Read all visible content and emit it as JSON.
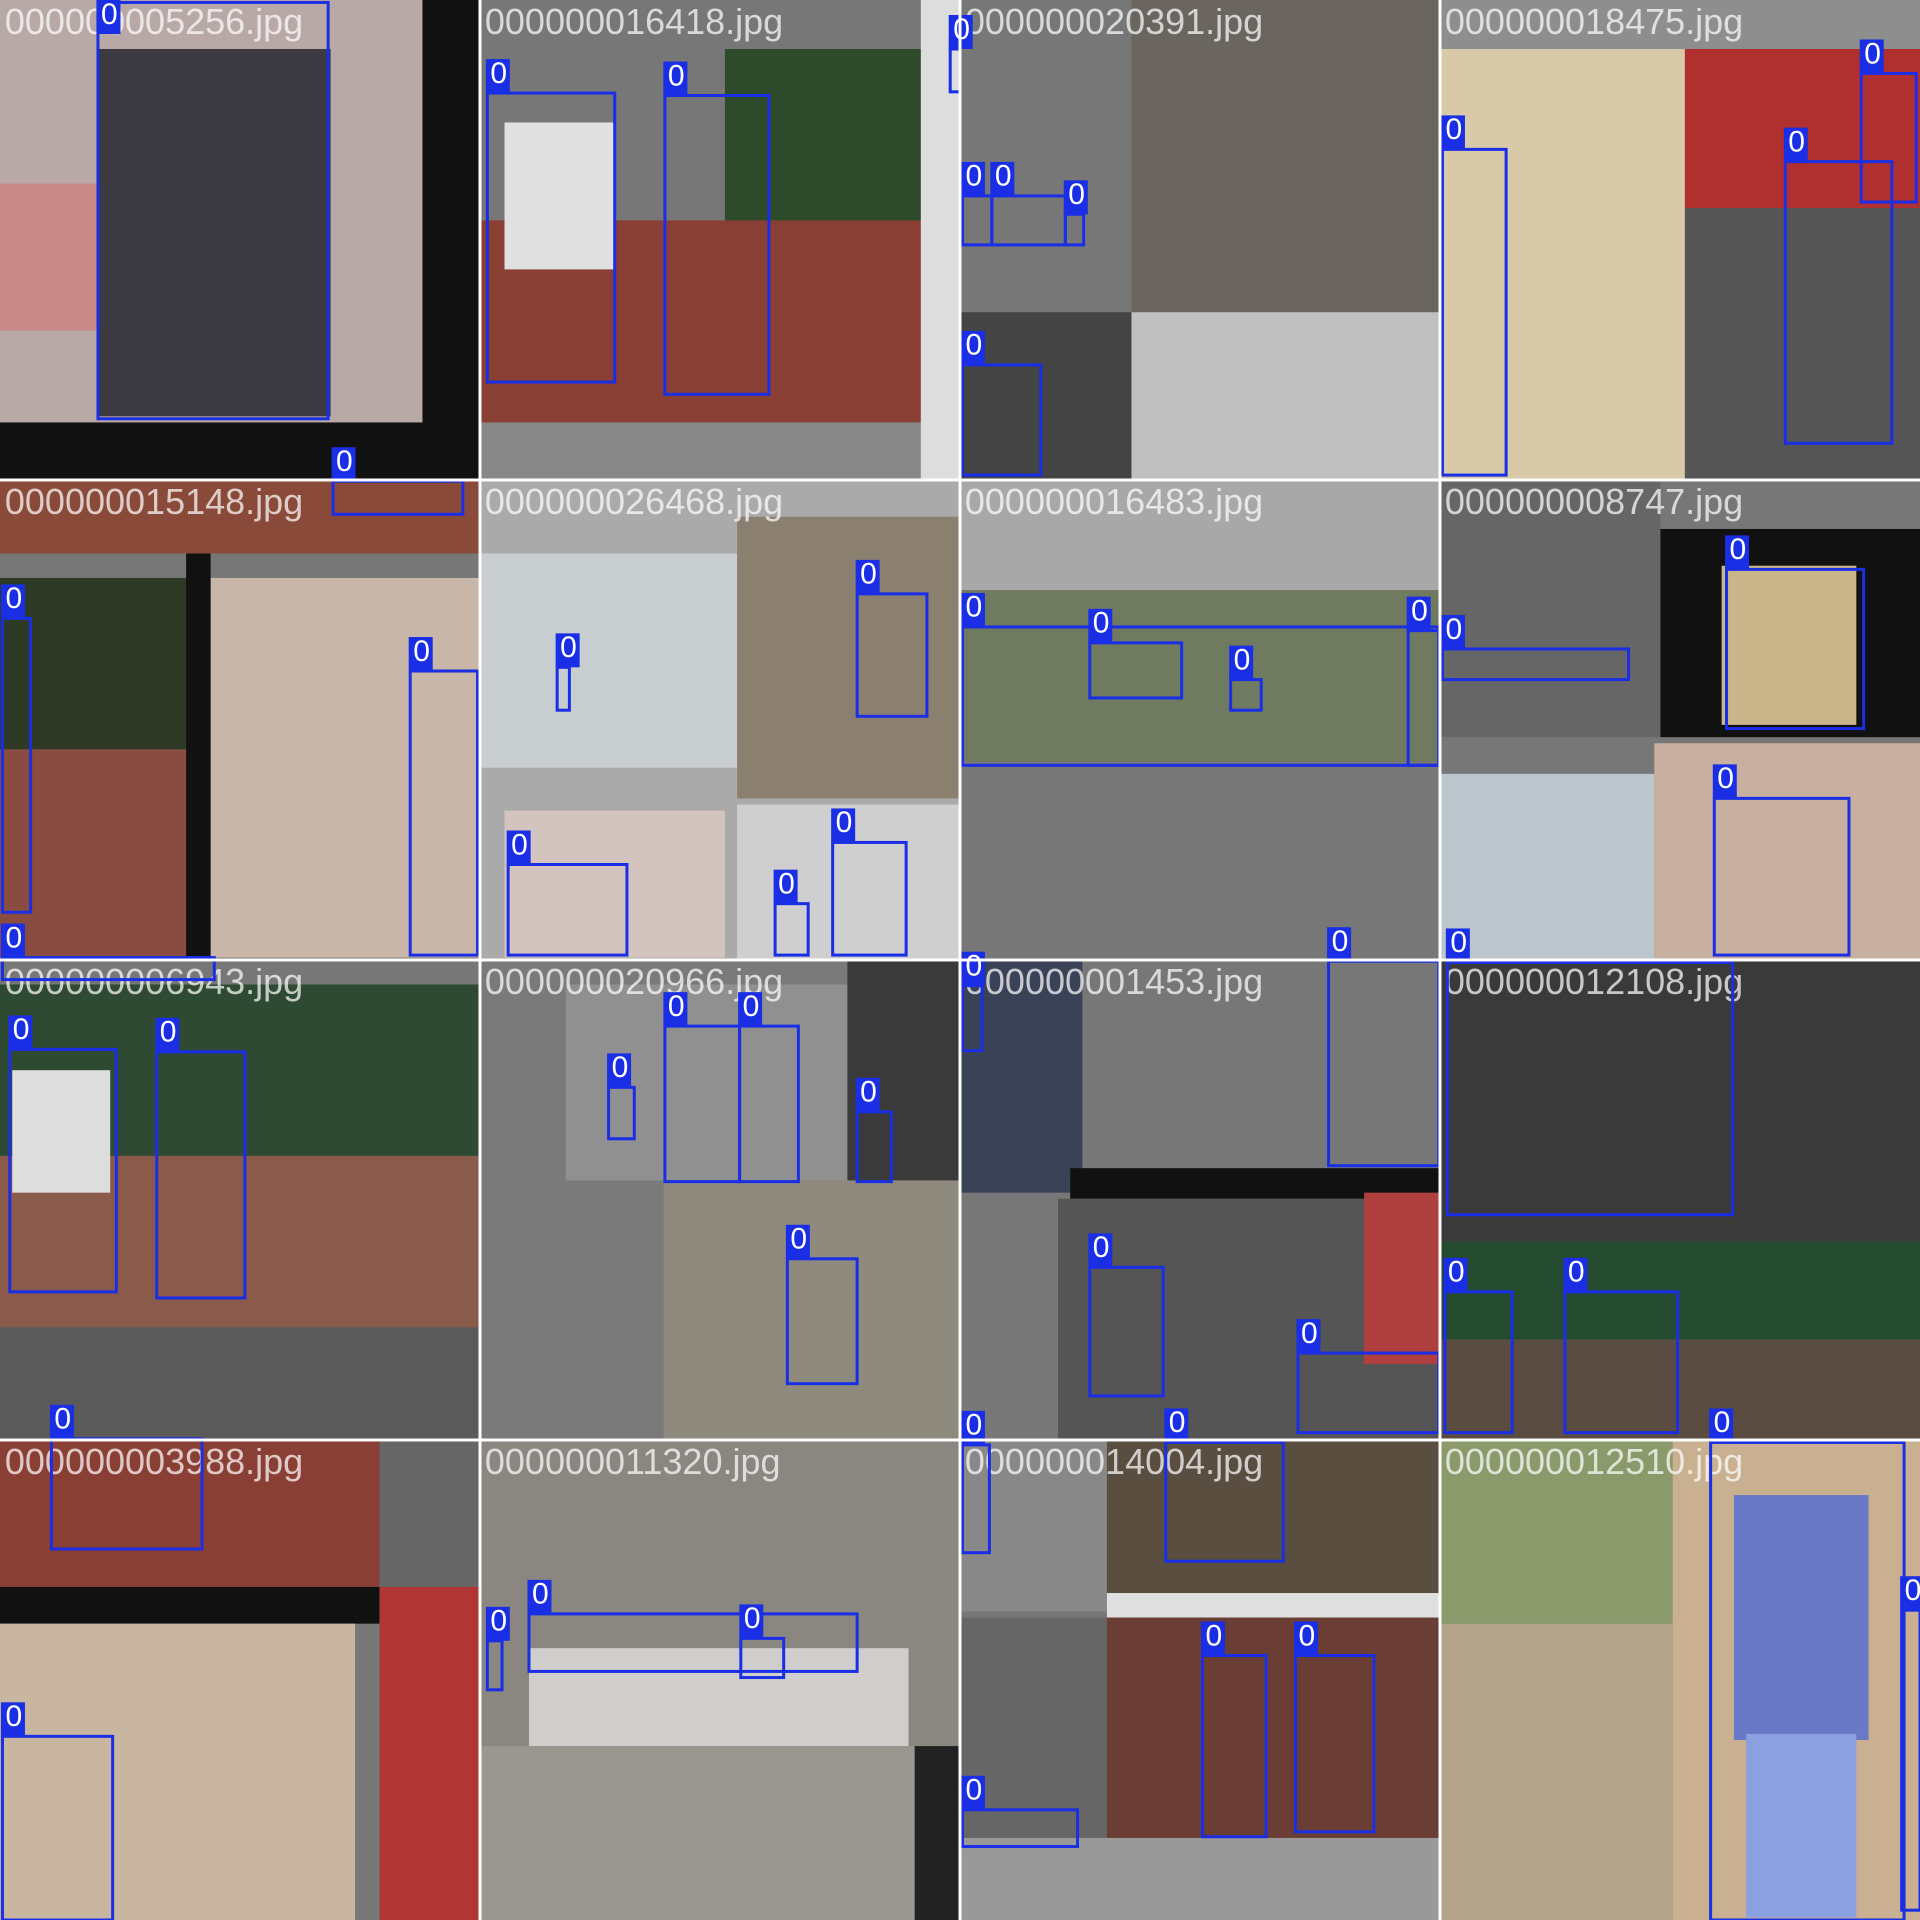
{
  "tiles": [
    {
      "filename": "000000005256.jpg",
      "boxes": [
        {
          "label": "0"
        }
      ]
    },
    {
      "filename": "000000016418.jpg",
      "boxes": [
        {
          "label": "0"
        },
        {
          "label": "0"
        }
      ]
    },
    {
      "filename": "000000020391.jpg",
      "boxes": [
        {
          "label": "0"
        },
        {
          "label": "0"
        },
        {
          "label": "0"
        },
        {
          "label": "0"
        },
        {
          "label": "0"
        }
      ]
    },
    {
      "filename": "000000018475.jpg",
      "boxes": [
        {
          "label": "0"
        },
        {
          "label": "0"
        },
        {
          "label": "0"
        }
      ]
    },
    {
      "filename": "000000015148.jpg",
      "boxes": [
        {
          "label": "0"
        },
        {
          "label": "0"
        },
        {
          "label": "0"
        },
        {
          "label": "0"
        }
      ]
    },
    {
      "filename": "000000026468.jpg",
      "boxes": [
        {
          "label": "0"
        },
        {
          "label": "0"
        },
        {
          "label": "0"
        },
        {
          "label": "0"
        },
        {
          "label": "0"
        }
      ]
    },
    {
      "filename": "000000016483.jpg",
      "boxes": [
        {
          "label": "0"
        },
        {
          "label": "0"
        },
        {
          "label": "0"
        },
        {
          "label": "0"
        }
      ]
    },
    {
      "filename": "000000008747.jpg",
      "boxes": [
        {
          "label": "0"
        },
        {
          "label": "0"
        },
        {
          "label": "0"
        }
      ]
    },
    {
      "filename": "000000006943.jpg",
      "boxes": [
        {
          "label": "0"
        },
        {
          "label": "0"
        }
      ]
    },
    {
      "filename": "000000020966.jpg",
      "boxes": [
        {
          "label": "0"
        },
        {
          "label": "0"
        },
        {
          "label": "0"
        },
        {
          "label": "0"
        },
        {
          "label": "0"
        }
      ]
    },
    {
      "filename": "000000001453.jpg",
      "boxes": [
        {
          "label": "0"
        },
        {
          "label": "0"
        },
        {
          "label": "0"
        },
        {
          "label": "0"
        }
      ]
    },
    {
      "filename": "000000012108.jpg",
      "boxes": [
        {
          "label": "0"
        },
        {
          "label": "0"
        },
        {
          "label": "0"
        }
      ]
    },
    {
      "filename": "000000003988.jpg",
      "boxes": [
        {
          "label": "0"
        },
        {
          "label": "0"
        }
      ]
    },
    {
      "filename": "000000011320.jpg",
      "boxes": [
        {
          "label": "0"
        },
        {
          "label": "0"
        },
        {
          "label": "0"
        }
      ]
    },
    {
      "filename": "000000014004.jpg",
      "boxes": [
        {
          "label": "0"
        },
        {
          "label": "0"
        },
        {
          "label": "0"
        },
        {
          "label": "0"
        },
        {
          "label": "0"
        }
      ]
    },
    {
      "filename": "000000012510.jpg",
      "boxes": [
        {
          "label": "0"
        },
        {
          "label": "0"
        }
      ]
    }
  ]
}
